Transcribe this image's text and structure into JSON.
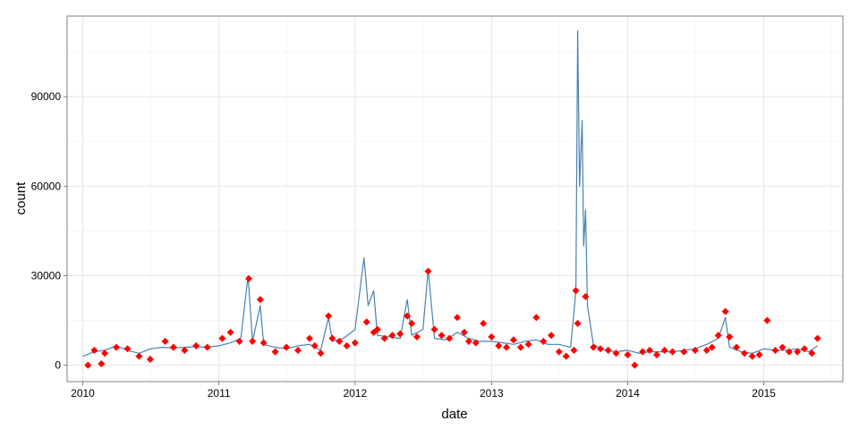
{
  "chart_data": {
    "type": "line",
    "title": "",
    "xlabel": "date",
    "ylabel": "count",
    "x_type": "date",
    "xlim": [
      "2009-11-20",
      "2015-08-01"
    ],
    "ylim": [
      -5500,
      117000
    ],
    "grid": true,
    "legend": "none",
    "x_ticks": [
      {
        "value": "2010-01-01",
        "label": "2010"
      },
      {
        "value": "2011-01-01",
        "label": "2011"
      },
      {
        "value": "2012-01-01",
        "label": "2012"
      },
      {
        "value": "2013-01-01",
        "label": "2013"
      },
      {
        "value": "2014-01-01",
        "label": "2014"
      },
      {
        "value": "2015-01-01",
        "label": "2015"
      }
    ],
    "y_ticks": [
      {
        "value": 0,
        "label": "0"
      },
      {
        "value": 30000,
        "label": "30000"
      },
      {
        "value": 60000,
        "label": "60000"
      },
      {
        "value": 90000,
        "label": "90000"
      }
    ],
    "series": [
      {
        "color": "#4682b4",
        "x": [
          "2010-01-01",
          "2010-02-01",
          "2010-03-01",
          "2010-04-01",
          "2010-05-01",
          "2010-06-01",
          "2010-07-01",
          "2010-08-01",
          "2010-09-01",
          "2010-10-01",
          "2010-11-01",
          "2010-12-01",
          "2011-01-01",
          "2011-02-01",
          "2011-03-01",
          "2011-03-20",
          "2011-04-01",
          "2011-04-22",
          "2011-05-01",
          "2011-06-01",
          "2011-07-01",
          "2011-08-01",
          "2011-09-01",
          "2011-10-01",
          "2011-10-22",
          "2011-11-01",
          "2011-12-01",
          "2012-01-01",
          "2012-01-25",
          "2012-02-05",
          "2012-02-20",
          "2012-03-01",
          "2012-04-01",
          "2012-05-01",
          "2012-05-20",
          "2012-06-01",
          "2012-07-01",
          "2012-07-15",
          "2012-08-01",
          "2012-09-01",
          "2012-10-01",
          "2012-11-01",
          "2012-12-01",
          "2013-01-01",
          "2013-02-01",
          "2013-03-01",
          "2013-04-01",
          "2013-05-01",
          "2013-06-01",
          "2013-07-01",
          "2013-08-01",
          "2013-08-15",
          "2013-08-20",
          "2013-08-25",
          "2013-09-01",
          "2013-09-05",
          "2013-09-10",
          "2013-09-15",
          "2013-10-01",
          "2013-11-01",
          "2013-12-01",
          "2014-01-01",
          "2014-02-01",
          "2014-03-01",
          "2014-04-01",
          "2014-05-01",
          "2014-06-01",
          "2014-07-01",
          "2014-08-01",
          "2014-09-01",
          "2014-09-20",
          "2014-10-01",
          "2014-11-01",
          "2014-12-01",
          "2015-01-01",
          "2015-02-01",
          "2015-03-01",
          "2015-04-01",
          "2015-05-01",
          "2015-05-25"
        ],
        "values": [
          3000,
          4500,
          5000,
          6500,
          5000,
          4000,
          5500,
          6000,
          5800,
          6000,
          6200,
          6000,
          6500,
          7500,
          9000,
          30000,
          8000,
          20000,
          7000,
          6000,
          5500,
          6500,
          7000,
          5000,
          16000,
          8000,
          9000,
          12000,
          36000,
          20000,
          25000,
          10000,
          9500,
          9000,
          22000,
          10000,
          12000,
          32000,
          9000,
          8500,
          11000,
          9000,
          8000,
          8000,
          7500,
          7000,
          8000,
          8500,
          7000,
          7000,
          6000,
          25000,
          112000,
          60000,
          82000,
          40000,
          52000,
          20000,
          7000,
          5000,
          4500,
          5000,
          4000,
          4500,
          4500,
          4500,
          5000,
          5500,
          7000,
          9000,
          16000,
          6000,
          4500,
          4000,
          5500,
          5000,
          5000,
          5500,
          4500,
          6500
        ]
      },
      {
        "name": "",
        "color": "#ff0000",
        "marker": "diamond",
        "x": [
          "2010-01-15",
          "2010-02-01",
          "2010-02-20",
          "2010-03-01",
          "2010-04-01",
          "2010-05-01",
          "2010-06-01",
          "2010-07-01",
          "2010-08-10",
          "2010-09-01",
          "2010-10-01",
          "2010-11-01",
          "2010-12-01",
          "2011-01-10",
          "2011-02-01",
          "2011-02-25",
          "2011-03-22",
          "2011-04-01",
          "2011-04-22",
          "2011-05-01",
          "2011-06-01",
          "2011-07-01",
          "2011-08-01",
          "2011-09-01",
          "2011-09-15",
          "2011-10-01",
          "2011-10-22",
          "2011-11-01",
          "2011-11-20",
          "2011-12-10",
          "2012-01-01",
          "2012-02-01",
          "2012-02-20",
          "2012-03-01",
          "2012-03-20",
          "2012-04-10",
          "2012-05-01",
          "2012-05-20",
          "2012-06-01",
          "2012-06-15",
          "2012-07-15",
          "2012-08-01",
          "2012-08-20",
          "2012-09-10",
          "2012-10-01",
          "2012-10-20",
          "2012-11-01",
          "2012-11-20",
          "2012-12-10",
          "2013-01-01",
          "2013-01-20",
          "2013-02-10",
          "2013-03-01",
          "2013-03-20",
          "2013-04-10",
          "2013-05-01",
          "2013-05-20",
          "2013-06-10",
          "2013-07-01",
          "2013-07-20",
          "2013-08-10",
          "2013-08-15",
          "2013-08-20",
          "2013-09-10",
          "2013-10-01",
          "2013-10-20",
          "2013-11-10",
          "2013-12-01",
          "2014-01-01",
          "2014-01-20",
          "2014-02-10",
          "2014-03-01",
          "2014-03-20",
          "2014-04-10",
          "2014-05-01",
          "2014-06-01",
          "2014-07-01",
          "2014-08-01",
          "2014-08-15",
          "2014-09-01",
          "2014-09-20",
          "2014-10-01",
          "2014-10-20",
          "2014-11-10",
          "2014-12-01",
          "2014-12-20",
          "2015-01-10",
          "2015-02-01",
          "2015-02-20",
          "2015-03-10",
          "2015-04-01",
          "2015-04-20",
          "2015-05-10",
          "2015-05-25"
        ],
        "values": [
          0,
          5000,
          500,
          4000,
          6000,
          5500,
          3000,
          2000,
          8000,
          6000,
          5000,
          6500,
          6000,
          9000,
          11000,
          8000,
          29000,
          8000,
          22000,
          7500,
          4500,
          6000,
          5000,
          9000,
          6500,
          4000,
          16500,
          9000,
          8000,
          6500,
          7500,
          14500,
          11000,
          12000,
          9000,
          10000,
          10500,
          16500,
          14000,
          9500,
          31500,
          12000,
          10000,
          9000,
          16000,
          11000,
          8000,
          7500,
          14000,
          9500,
          6500,
          6000,
          8500,
          6000,
          7000,
          16000,
          8000,
          10000,
          4500,
          3000,
          5000,
          25000,
          14000,
          23000,
          6000,
          5500,
          5000,
          4000,
          3500,
          0,
          4500,
          5000,
          3500,
          5000,
          4500,
          4500,
          5000,
          5000,
          6000,
          10000,
          18000,
          9500,
          6000,
          4000,
          3000,
          3500,
          15000,
          5000,
          6000,
          4500,
          4500,
          5500,
          4000,
          9000
        ]
      }
    ]
  }
}
